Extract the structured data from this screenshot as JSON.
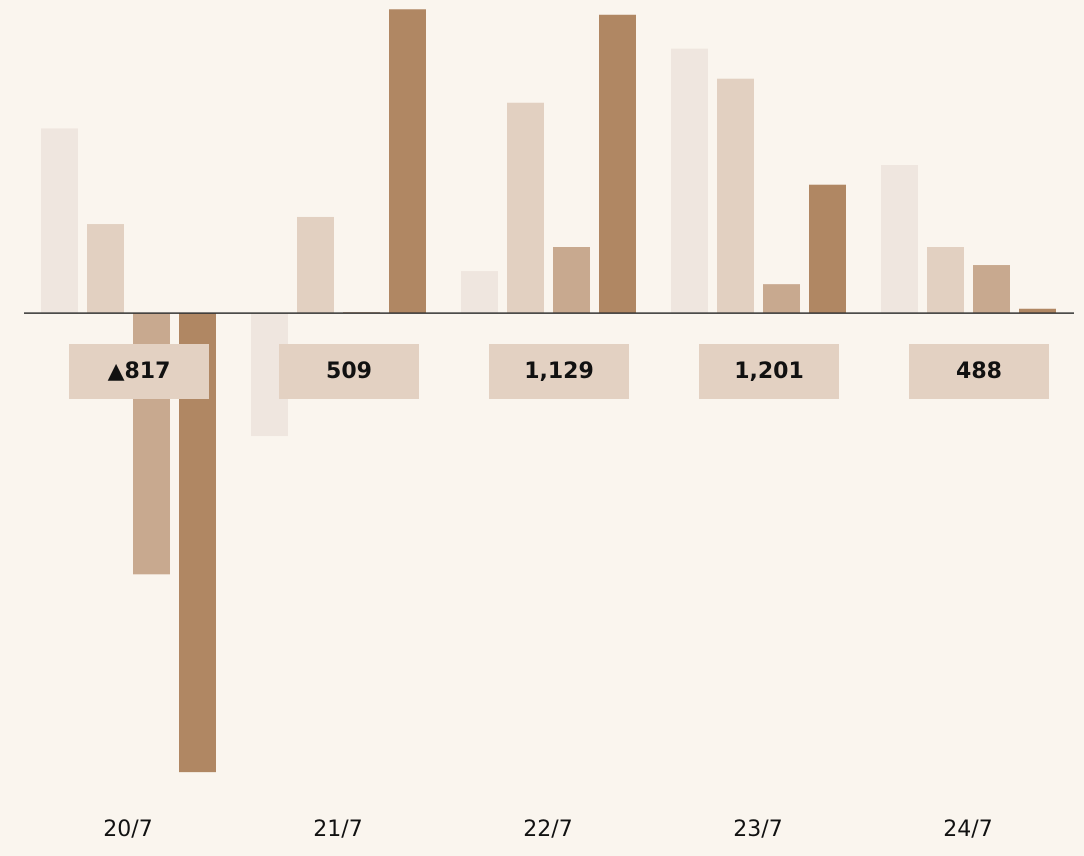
{
  "chart_data": {
    "type": "bar",
    "categories": [
      "20/7",
      "21/7",
      "22/7",
      "23/7",
      "24/7"
    ],
    "series": [
      {
        "color": "#efe6df",
        "values": [
          338,
          -225,
          77,
          484,
          271
        ]
      },
      {
        "color": "#e2d0c1",
        "values": [
          163,
          176,
          385,
          429,
          121
        ]
      },
      {
        "color": "#c8a98f",
        "values": [
          -478,
          2,
          121,
          53,
          88
        ]
      },
      {
        "color": "#b08763",
        "values": [
          -840,
          556,
          546,
          235,
          8
        ]
      }
    ],
    "totals": {
      "values": [
        -817,
        509,
        1129,
        1201,
        488
      ],
      "value_labels": [
        "▲817",
        "509",
        "1,129",
        "1,201",
        "488"
      ],
      "color": "#e3d1c2"
    },
    "ylim": [
      -880,
      573
    ]
  }
}
